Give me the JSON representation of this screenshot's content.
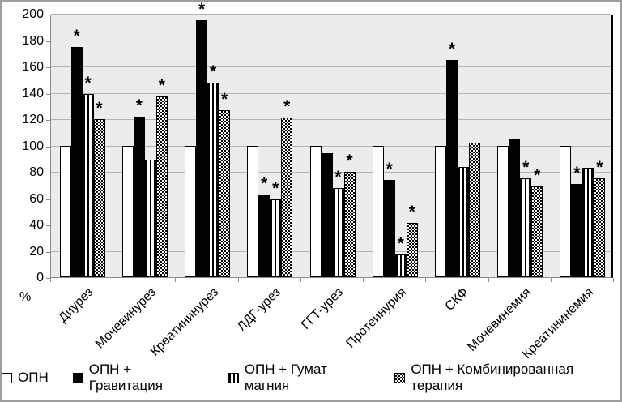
{
  "chart_data": {
    "type": "bar",
    "title": "",
    "ylabel": "%",
    "ylim": [
      0,
      200
    ],
    "yticks": [
      0,
      20,
      40,
      60,
      80,
      100,
      120,
      140,
      160,
      180,
      200
    ],
    "grid": true,
    "legend_position": "bottom",
    "significance_marker": "*",
    "categories": [
      "Диурез",
      "Мочевинурез",
      "Креатининурез",
      "ЛДГ-урез",
      "ГГТ-урез",
      "Протеинурия",
      "СКФ",
      "Мочевинемия",
      "Креатининемия"
    ],
    "series": [
      {
        "name": "ОПН",
        "pattern": "white",
        "values": [
          100,
          100,
          100,
          100,
          100,
          100,
          100,
          100,
          100
        ],
        "significant": [
          false,
          false,
          false,
          false,
          false,
          false,
          false,
          false,
          false
        ]
      },
      {
        "name": "ОПН + Гравитация",
        "pattern": "black",
        "values": [
          175,
          122,
          195,
          63,
          94,
          74,
          165,
          105,
          71
        ],
        "significant": [
          true,
          true,
          true,
          true,
          false,
          true,
          true,
          false,
          true
        ]
      },
      {
        "name": "ОПН + Гумат магния",
        "pattern": "vertical-stripes",
        "values": [
          139,
          89,
          148,
          59,
          68,
          17,
          84,
          75,
          83
        ],
        "significant": [
          true,
          false,
          true,
          true,
          true,
          true,
          false,
          true,
          false
        ]
      },
      {
        "name": "ОПН + Комбинированная терапия",
        "pattern": "checker",
        "values": [
          120,
          137,
          127,
          121,
          80,
          41,
          102,
          69,
          75
        ],
        "significant": [
          true,
          true,
          true,
          true,
          true,
          true,
          false,
          true,
          true
        ]
      }
    ],
    "colors": {
      "plot_background": "#ececec",
      "gridline": "#b3b3b3",
      "axis": "#8c8c8c",
      "bar_outline": "#000000"
    }
  }
}
